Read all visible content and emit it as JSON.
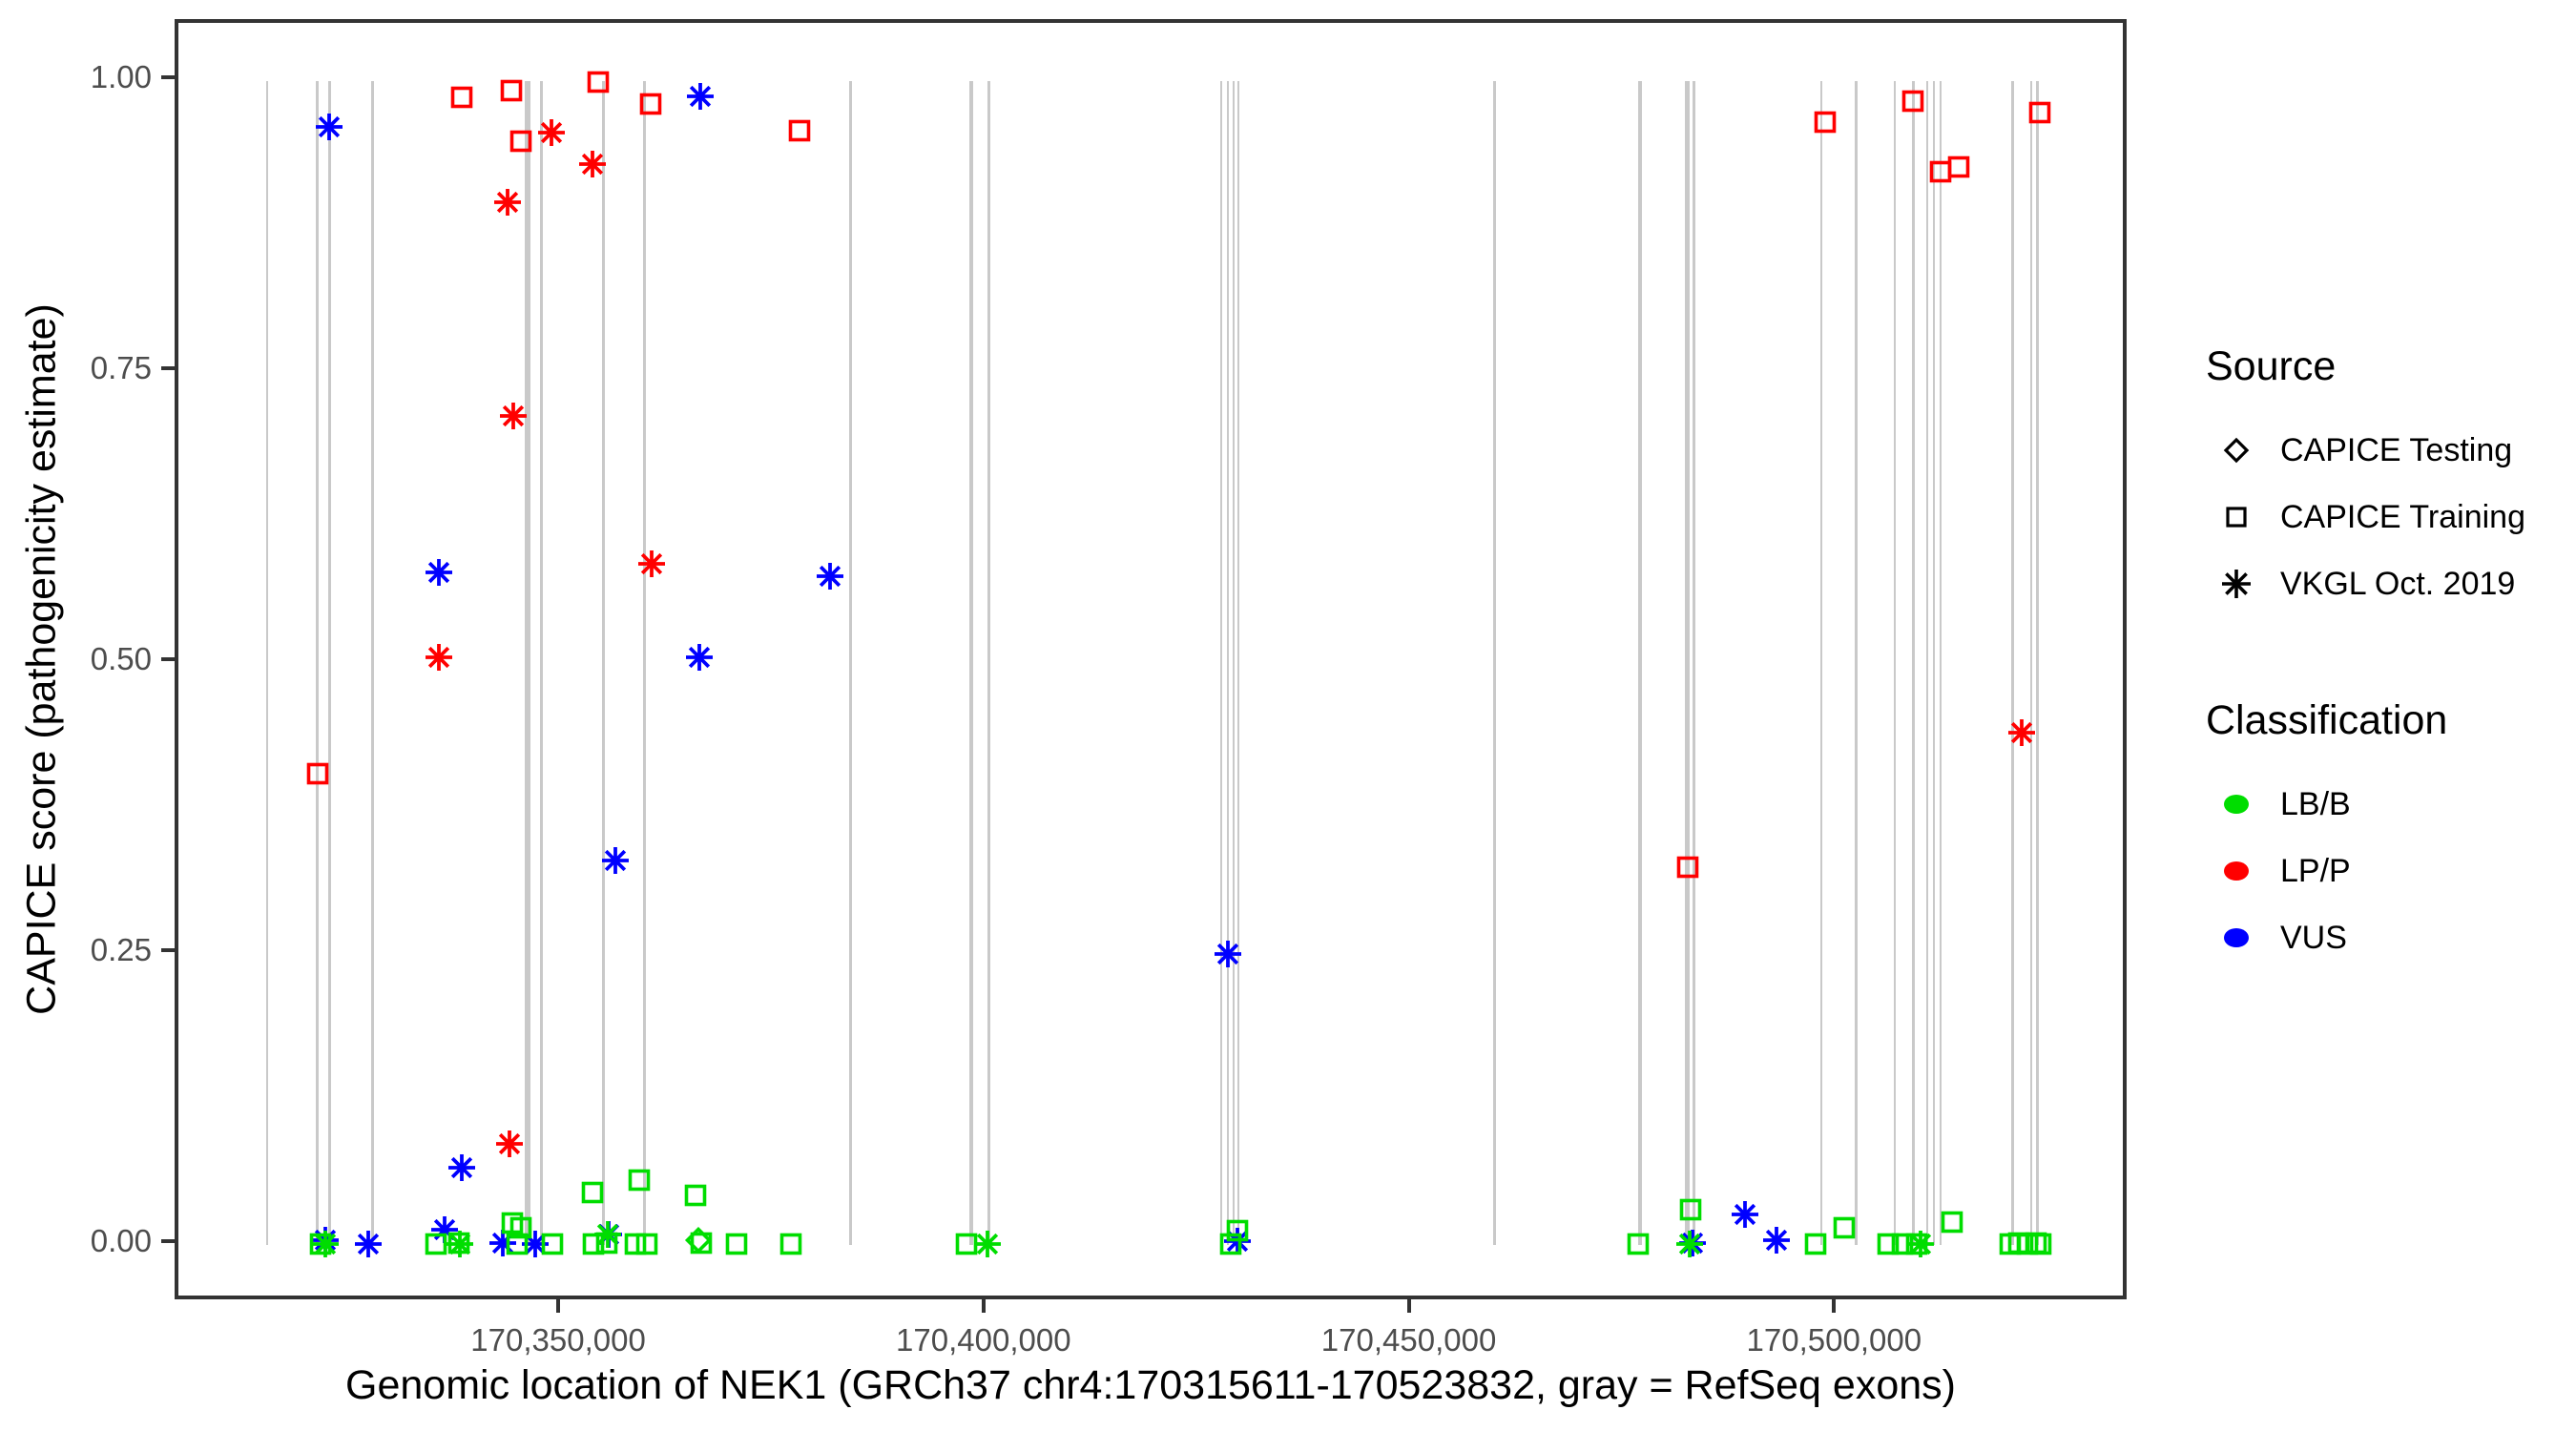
{
  "axes": {
    "ylabel": "CAPICE score (pathogenicity estimate)",
    "xlabel": "Genomic location of NEK1 (GRCh37 chr4:170315611-170523832, gray = RefSeq exons)",
    "yticks": [
      {
        "label": "1.00",
        "value": 1.0
      },
      {
        "label": "0.75",
        "value": 0.75
      },
      {
        "label": "0.50",
        "value": 0.5
      },
      {
        "label": "0.25",
        "value": 0.25
      },
      {
        "label": "0.00",
        "value": 0.0
      }
    ],
    "xticks": [
      {
        "label": "170,350,000",
        "value": 170350000
      },
      {
        "label": "170,400,000",
        "value": 170400000
      },
      {
        "label": "170,450,000",
        "value": 170450000
      },
      {
        "label": "170,500,000",
        "value": 170500000
      }
    ]
  },
  "legend": {
    "source": {
      "title": "Source",
      "items": [
        {
          "label": "CAPICE Testing",
          "marker": "diamond"
        },
        {
          "label": "CAPICE Training",
          "marker": "square"
        },
        {
          "label": "VKGL Oct. 2019",
          "marker": "asterisk"
        }
      ]
    },
    "classification": {
      "title": "Classification",
      "items": [
        {
          "label": "LB/B",
          "color": "#00dd00"
        },
        {
          "label": "LP/P",
          "color": "#ff0000"
        },
        {
          "label": "VUS",
          "color": "#0000ff"
        }
      ]
    }
  },
  "colors": {
    "LB/B": "#00dd00",
    "LP/P": "#ff0000",
    "VUS": "#0000ff",
    "exon": "#c9c9c9",
    "axis_text": "#4d4d4d",
    "axis_line": "#333333"
  },
  "chart_data": {
    "type": "scatter",
    "title": "",
    "xlabel": "Genomic location of NEK1 (GRCh37 chr4:170315611-170523832, gray = RefSeq exons)",
    "ylabel": "CAPICE score (pathogenicity estimate)",
    "xlim": [
      170304900,
      170534400
    ],
    "ylim": [
      -0.05,
      1.05
    ],
    "grid": "off",
    "legend_position": "right",
    "marker_by_source": {
      "testing": "diamond",
      "training": "square",
      "vkgl": "asterisk"
    },
    "exon_note": "gray vertical lines are RefSeq exons drawn from score 0 to 1",
    "exons": [
      {
        "bp": 170315330,
        "w": 2
      },
      {
        "bp": 170321165,
        "w": 3
      },
      {
        "bp": 170322623,
        "w": 3
      },
      {
        "bp": 170327672,
        "w": 3
      },
      {
        "bp": 170345961,
        "w": 6
      },
      {
        "bp": 170347532,
        "w": 3
      },
      {
        "bp": 170354825,
        "w": 3
      },
      {
        "bp": 170359649,
        "w": 3
      },
      {
        "bp": 170383884,
        "w": 3
      },
      {
        "bp": 170398134,
        "w": 4
      },
      {
        "bp": 170400153,
        "w": 3
      },
      {
        "bp": 170427530,
        "w": 2
      },
      {
        "bp": 170428316,
        "w": 2
      },
      {
        "bp": 170428989,
        "w": 2
      },
      {
        "bp": 170429550,
        "w": 2
      },
      {
        "bp": 170459619,
        "w": 3
      },
      {
        "bp": 170476786,
        "w": 4
      },
      {
        "bp": 170482350,
        "w": 5
      },
      {
        "bp": 170483069,
        "w": 3
      },
      {
        "bp": 170498104,
        "w": 2
      },
      {
        "bp": 170502143,
        "w": 3
      },
      {
        "bp": 170506743,
        "w": 2
      },
      {
        "bp": 170508875,
        "w": 3
      },
      {
        "bp": 170510558,
        "w": 2
      },
      {
        "bp": 170511344,
        "w": 2
      },
      {
        "bp": 170512129,
        "w": 2
      },
      {
        "bp": 170520544,
        "w": 3
      },
      {
        "bp": 170522788,
        "w": 2
      },
      {
        "bp": 170523461,
        "w": 3
      }
    ],
    "points": [
      [
        170338219,
        0.986,
        "training",
        "LP/P"
      ],
      [
        170344053,
        0.992,
        "training",
        "LP/P"
      ],
      [
        170345175,
        0.948,
        "training",
        "LP/P"
      ],
      [
        170354264,
        0.999,
        "training",
        "LP/P"
      ],
      [
        170360435,
        0.98,
        "training",
        "LP/P"
      ],
      [
        170377938,
        0.957,
        "training",
        "LP/P"
      ],
      [
        170321277,
        0.405,
        "training",
        "LP/P"
      ],
      [
        170482396,
        0.325,
        "training",
        "LP/P"
      ],
      [
        170498553,
        0.965,
        "training",
        "LP/P"
      ],
      [
        170508875,
        0.983,
        "training",
        "LP/P"
      ],
      [
        170512129,
        0.922,
        "training",
        "LP/P"
      ],
      [
        170514261,
        0.926,
        "training",
        "LP/P"
      ],
      [
        170523700,
        0.973,
        "training",
        "LP/P"
      ],
      [
        170348766,
        0.956,
        "vkgl",
        "LP/P"
      ],
      [
        170353590,
        0.929,
        "vkgl",
        "LP/P"
      ],
      [
        170343605,
        0.896,
        "vkgl",
        "LP/P"
      ],
      [
        170344278,
        0.712,
        "vkgl",
        "LP/P"
      ],
      [
        170360547,
        0.585,
        "vkgl",
        "LP/P"
      ],
      [
        170335526,
        0.505,
        "vkgl",
        "LP/P"
      ],
      [
        170343829,
        0.087,
        "vkgl",
        "LP/P"
      ],
      [
        170521666,
        0.44,
        "vkgl",
        "LP/P"
      ],
      [
        170322623,
        0.961,
        "vkgl",
        "VUS"
      ],
      [
        170366270,
        0.987,
        "vkgl",
        "VUS"
      ],
      [
        170335526,
        0.578,
        "vkgl",
        "VUS"
      ],
      [
        170381528,
        0.575,
        "vkgl",
        "VUS"
      ],
      [
        170366157,
        0.505,
        "vkgl",
        "VUS"
      ],
      [
        170356283,
        0.33,
        "vkgl",
        "VUS"
      ],
      [
        170428316,
        0.25,
        "vkgl",
        "VUS"
      ],
      [
        170338219,
        0.066,
        "vkgl",
        "VUS"
      ],
      [
        170336199,
        0.013,
        "vkgl",
        "VUS"
      ],
      [
        170322174,
        0.004,
        "vkgl",
        "VUS"
      ],
      [
        170327223,
        0.001,
        "vkgl",
        "VUS"
      ],
      [
        170343044,
        0.002,
        "vkgl",
        "VUS"
      ],
      [
        170346858,
        0.001,
        "vkgl",
        "VUS"
      ],
      [
        170355497,
        0.009,
        "vkgl",
        "VUS"
      ],
      [
        170429438,
        0.003,
        "vkgl",
        "VUS"
      ],
      [
        170482957,
        0.002,
        "vkgl",
        "VUS"
      ],
      [
        170489128,
        0.026,
        "vkgl",
        "VUS"
      ],
      [
        170492831,
        0.004,
        "vkgl",
        "VUS"
      ],
      [
        170321613,
        0.001,
        "training",
        "LB/B"
      ],
      [
        170335190,
        0.001,
        "training",
        "LB/B"
      ],
      [
        170337882,
        0.002,
        "training",
        "LB/B"
      ],
      [
        170344166,
        0.019,
        "training",
        "LB/B"
      ],
      [
        170345175,
        0.015,
        "training",
        "LB/B"
      ],
      [
        170344727,
        0.001,
        "training",
        "LB/B"
      ],
      [
        170348878,
        0.001,
        "training",
        "LB/B"
      ],
      [
        170353590,
        0.045,
        "training",
        "LB/B"
      ],
      [
        170359088,
        0.056,
        "training",
        "LB/B"
      ],
      [
        170365708,
        0.043,
        "training",
        "LB/B"
      ],
      [
        170353702,
        0.001,
        "training",
        "LB/B"
      ],
      [
        170355273,
        0.002,
        "training",
        "LB/B"
      ],
      [
        170358639,
        0.001,
        "training",
        "LB/B"
      ],
      [
        170359986,
        0.001,
        "training",
        "LB/B"
      ],
      [
        170366382,
        0.002,
        "training",
        "LB/B"
      ],
      [
        170370533,
        0.001,
        "training",
        "LB/B"
      ],
      [
        170376928,
        0.001,
        "training",
        "LB/B"
      ],
      [
        170397573,
        0.001,
        "training",
        "LB/B"
      ],
      [
        170428652,
        0.001,
        "training",
        "LB/B"
      ],
      [
        170429438,
        0.012,
        "training",
        "LB/B"
      ],
      [
        170476562,
        0.001,
        "training",
        "LB/B"
      ],
      [
        170482733,
        0.03,
        "training",
        "LB/B"
      ],
      [
        170497431,
        0.001,
        "training",
        "LB/B"
      ],
      [
        170500797,
        0.015,
        "training",
        "LB/B"
      ],
      [
        170505958,
        0.001,
        "training",
        "LB/B"
      ],
      [
        170507641,
        0.001,
        "training",
        "LB/B"
      ],
      [
        170509324,
        0.001,
        "training",
        "LB/B"
      ],
      [
        170513476,
        0.02,
        "training",
        "LB/B"
      ],
      [
        170520320,
        0.001,
        "training",
        "LB/B"
      ],
      [
        170521330,
        0.002,
        "training",
        "LB/B"
      ],
      [
        170522339,
        0.001,
        "training",
        "LB/B"
      ],
      [
        170523349,
        0.002,
        "training",
        "LB/B"
      ],
      [
        170523800,
        0.001,
        "training",
        "LB/B"
      ],
      [
        170322174,
        0.001,
        "vkgl",
        "LB/B"
      ],
      [
        170337994,
        0.001,
        "vkgl",
        "LB/B"
      ],
      [
        170355385,
        0.009,
        "vkgl",
        "LB/B"
      ],
      [
        170400041,
        0.001,
        "vkgl",
        "LB/B"
      ],
      [
        170482620,
        0.001,
        "vkgl",
        "LB/B"
      ],
      [
        170509773,
        0.001,
        "vkgl",
        "LB/B"
      ],
      [
        170366045,
        0.004,
        "testing",
        "LB/B"
      ]
    ]
  }
}
